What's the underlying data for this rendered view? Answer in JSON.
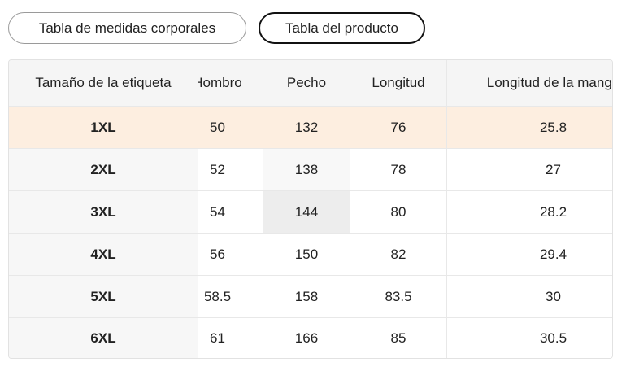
{
  "tabs": [
    "Tabla de medidas corporales",
    "Tabla del producto"
  ],
  "table": {
    "header": [
      "Tamaño de la etiqueta",
      "Hombro",
      "Pecho",
      "Longitud",
      "Longitud de la manga"
    ],
    "rows": [
      [
        "1XL",
        50,
        132,
        76,
        25.8
      ],
      [
        "2XL",
        52,
        138,
        78,
        27
      ],
      [
        "3XL",
        54,
        144,
        80,
        28.2
      ],
      [
        "4XL",
        56,
        150,
        82,
        29.4
      ],
      [
        "5XL",
        58.5,
        158,
        83.5,
        30
      ],
      [
        "6XL",
        61,
        166,
        85,
        30.5
      ]
    ]
  }
}
